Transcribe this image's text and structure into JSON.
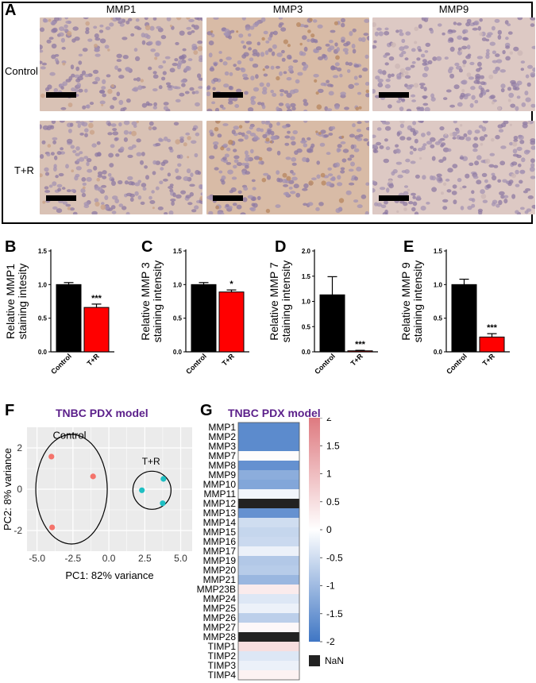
{
  "panel_letters": {
    "a": "A",
    "b": "B",
    "c": "C",
    "d": "D",
    "e": "E",
    "f": "F",
    "g": "G"
  },
  "panel_a": {
    "columns": [
      "MMP1",
      "MMP3",
      "MMP9"
    ],
    "rows": [
      "Control",
      "T+R"
    ]
  },
  "bar_charts": [
    {
      "id": "B",
      "ylabel_line1": "Relative MMP1",
      "ylabel_line2": "staining intesity",
      "yticks": [
        "0.0",
        "0.5",
        "1.0",
        "1.5"
      ],
      "categories": [
        "Control",
        "T+R"
      ],
      "values": [
        1.0,
        0.66
      ],
      "errors": [
        0.03,
        0.05
      ],
      "sig": "***",
      "ymax": 1.5
    },
    {
      "id": "C",
      "ylabel_line1": "Relative MMP 3",
      "ylabel_line2": "staining intensity",
      "yticks": [
        "0.0",
        "0.5",
        "1.0",
        "1.5"
      ],
      "categories": [
        "Control",
        "T+R"
      ],
      "values": [
        1.0,
        0.89
      ],
      "errors": [
        0.03,
        0.03
      ],
      "sig": "*",
      "ymax": 1.5
    },
    {
      "id": "D",
      "ylabel_line1": "Relative MMP 7",
      "ylabel_line2": "staining intensity",
      "yticks": [
        "0.0",
        "0.5",
        "1.0",
        "1.5",
        "2.0"
      ],
      "categories": [
        "Control",
        "T+R"
      ],
      "values": [
        1.13,
        0.02
      ],
      "errors": [
        0.36,
        0.01
      ],
      "sig": "***",
      "ymax": 2.0
    },
    {
      "id": "E",
      "ylabel_line1": "Relative MMP 9",
      "ylabel_line2": "staining intensity",
      "yticks": [
        "0.0",
        "0.5",
        "1.0",
        "1.5"
      ],
      "categories": [
        "Control",
        "T+R"
      ],
      "values": [
        1.0,
        0.22
      ],
      "errors": [
        0.08,
        0.05
      ],
      "sig": "***",
      "ymax": 1.5
    }
  ],
  "chart_data": [
    {
      "type": "bar",
      "title": "",
      "ylabel": "Relative MMP1 staining intesity",
      "categories": [
        "Control",
        "T+R"
      ],
      "values": [
        1.0,
        0.66
      ],
      "ylim": [
        0,
        1.5
      ],
      "colors": [
        "#000000",
        "#ff0000"
      ]
    },
    {
      "type": "bar",
      "title": "",
      "ylabel": "Relative MMP 3 staining intensity",
      "categories": [
        "Control",
        "T+R"
      ],
      "values": [
        1.0,
        0.89
      ],
      "ylim": [
        0,
        1.5
      ],
      "colors": [
        "#000000",
        "#ff0000"
      ]
    },
    {
      "type": "bar",
      "title": "",
      "ylabel": "Relative MMP 7 staining intensity",
      "categories": [
        "Control",
        "T+R"
      ],
      "values": [
        1.13,
        0.02
      ],
      "ylim": [
        0,
        2.0
      ],
      "colors": [
        "#000000",
        "#ff0000"
      ]
    },
    {
      "type": "bar",
      "title": "",
      "ylabel": "Relative MMP 9 staining intensity",
      "categories": [
        "Control",
        "T+R"
      ],
      "values": [
        1.0,
        0.22
      ],
      "ylim": [
        0,
        1.5
      ],
      "colors": [
        "#000000",
        "#ff0000"
      ]
    },
    {
      "type": "scatter",
      "title": "TNBC PDX model",
      "xlabel": "PC1: 82% variance",
      "ylabel": "PC2: 8% variance",
      "xticks": [
        "-5.0",
        "-2.5",
        "0.0",
        "2.5",
        "5.0"
      ],
      "yticks": [
        "2",
        "0",
        "-2"
      ],
      "xlim": [
        -5.7,
        5.8
      ],
      "ylim": [
        -3.0,
        3.0
      ],
      "series": [
        {
          "name": "Control",
          "color": "#f4736b",
          "x": [
            -4.0,
            -1.1,
            -3.95
          ],
          "y": [
            1.58,
            0.62,
            -1.85
          ]
        },
        {
          "name": "T+R",
          "color": "#1fbfc3",
          "x": [
            2.3,
            3.8,
            3.75
          ],
          "y": [
            -0.05,
            0.5,
            -0.68
          ]
        }
      ]
    },
    {
      "type": "heatmap",
      "title": "TNBC PDX model",
      "rows": [
        "MMP1",
        "MMP2",
        "MMP3",
        "MMP7",
        "MMP8",
        "MMP9",
        "MMP10",
        "MMP11",
        "MMP12",
        "MMP13",
        "MMP14",
        "MMP15",
        "MMP16",
        "MMP17",
        "MMP19",
        "MMP20",
        "MMP21",
        "MMP23B",
        "MMP24",
        "MMP25",
        "MMP26",
        "MMP27",
        "MMP28",
        "TIMP1",
        "TIMP2",
        "TIMP3",
        "TIMP4"
      ],
      "values": [
        -1.7,
        -1.7,
        -1.7,
        0.05,
        -1.6,
        -1.2,
        -1.3,
        -0.15,
        null,
        -1.6,
        -0.5,
        -0.6,
        -0.55,
        -0.2,
        -0.8,
        -0.75,
        -1.05,
        0.3,
        -0.35,
        -0.2,
        -0.7,
        0.1,
        null,
        0.5,
        -0.35,
        -0.2,
        0.2
      ],
      "colorbar_ticks": [
        "2",
        "1.5",
        "1",
        "0.5",
        "0",
        "-0.5",
        "-1",
        "-1.5",
        "-2"
      ],
      "nan_label": "NaN",
      "vmin": -2,
      "vmax": 2
    }
  ]
}
